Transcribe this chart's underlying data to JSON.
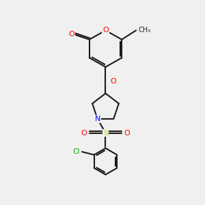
{
  "background_color": "#f0f0f0",
  "bond_color": "#1a1a1a",
  "atom_colors": {
    "O": "#ff0000",
    "N": "#0000ff",
    "S": "#cccc00",
    "Cl": "#00aa00",
    "C": "#1a1a1a"
  },
  "figure_size": [
    3.0,
    3.0
  ],
  "dpi": 100
}
